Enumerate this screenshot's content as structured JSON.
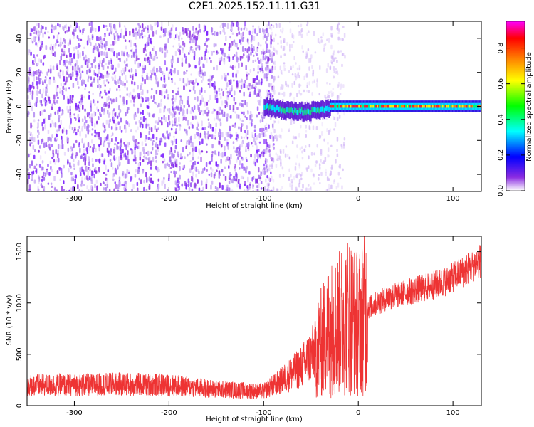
{
  "title": "C2E1.2025.152.11.11.G31",
  "chart_data": [
    {
      "type": "heatmap",
      "xlabel": "Height of straight line (km)",
      "ylabel": "Frequency (Hz)",
      "xlim": [
        -350,
        130
      ],
      "ylim": [
        -50,
        50
      ],
      "xticks": [
        -300,
        -200,
        -100,
        0,
        100
      ],
      "xtick_labels": [
        "-300",
        "-200",
        "-100",
        "0",
        "100"
      ],
      "yticks": [
        -40,
        -20,
        0,
        20,
        40
      ],
      "ytick_labels": [
        "-40",
        "-20",
        "0",
        "20",
        "40"
      ],
      "colorbar": {
        "label": "Normalized spectral amplitude",
        "range": [
          0,
          0.95
        ],
        "ticks": [
          0.0,
          0.2,
          0.4,
          0.6,
          0.8
        ],
        "tick_labels": [
          "0.0",
          "0.2",
          "0.4",
          "0.6",
          "0.8"
        ],
        "colormap": [
          "#ffffff",
          "#7f00ff",
          "#0000ff",
          "#00ffff",
          "#00ff00",
          "#ffff00",
          "#ff8000",
          "#ff0000",
          "#ff00ff"
        ]
      },
      "description_regions": [
        {
          "x_range": [
            -350,
            -100
          ],
          "freq_range": [
            -50,
            50
          ],
          "amplitude": 0.08
        },
        {
          "x_range": [
            -100,
            -30
          ],
          "freq_range": [
            -5,
            5
          ],
          "amplitude": 0.3
        },
        {
          "x_range": [
            -30,
            130
          ],
          "freq_range": [
            -2,
            2
          ],
          "amplitude": 0.85
        }
      ]
    },
    {
      "type": "line",
      "xlabel": "Height of straight line (km)",
      "ylabel": "SNR (10 * v/v)",
      "xlim": [
        -350,
        130
      ],
      "ylim": [
        0,
        1650
      ],
      "xticks": [
        -300,
        -200,
        -100,
        0,
        100
      ],
      "xtick_labels": [
        "-300",
        "-200",
        "-100",
        "0",
        "100"
      ],
      "yticks": [
        0,
        500,
        1000,
        1500
      ],
      "ytick_labels": [
        "0",
        "500",
        "1000",
        "1500"
      ],
      "color": "#ee3333",
      "series": [
        {
          "x": [
            -350,
            -300,
            -250,
            -200,
            -150,
            -100,
            -80,
            -60,
            -40,
            -30,
            -20,
            -10,
            0,
            10,
            20,
            30,
            50,
            70,
            90,
            110,
            130
          ],
          "values": [
            200,
            200,
            210,
            200,
            160,
            140,
            250,
            380,
            600,
            750,
            800,
            900,
            800,
            950,
            1000,
            1050,
            1100,
            1150,
            1200,
            1300,
            1420
          ]
        }
      ]
    }
  ]
}
